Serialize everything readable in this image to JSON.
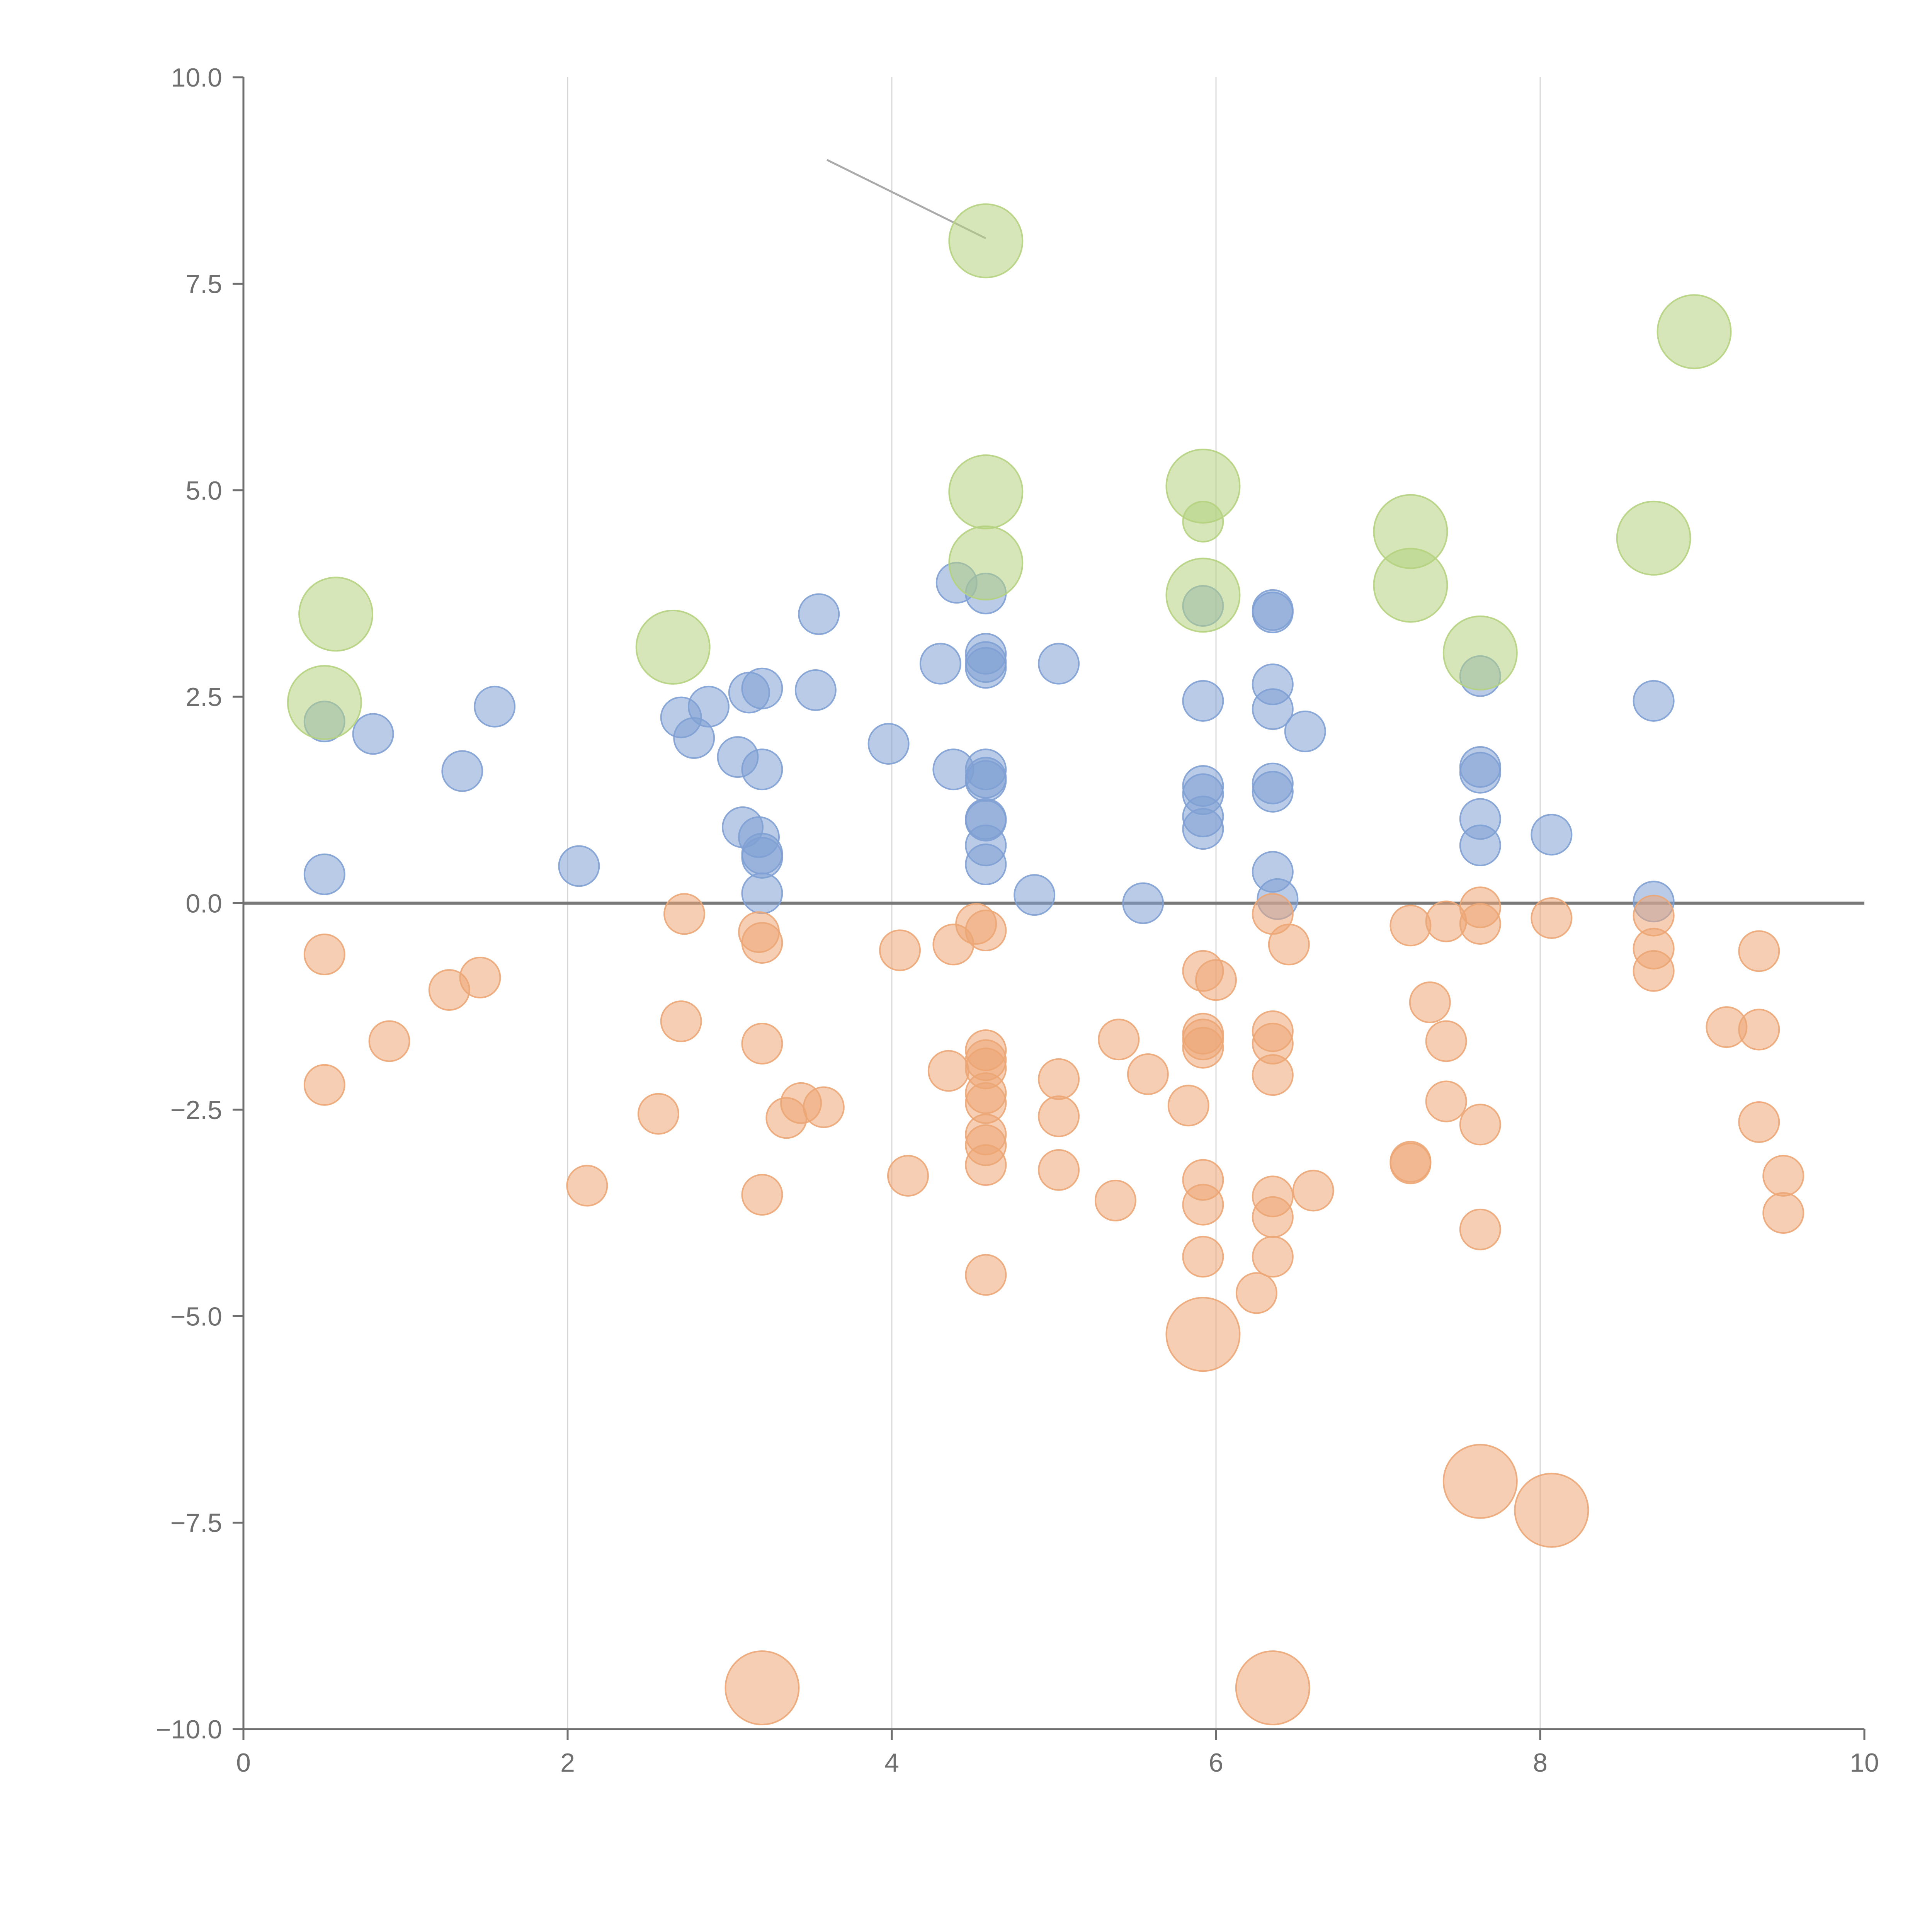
{
  "chart_data": {
    "type": "scatter",
    "title": "",
    "xlabel": "",
    "ylabel": "",
    "xlim": [
      0,
      10
    ],
    "ylim": [
      -10,
      10
    ],
    "grid": "vertical",
    "zero_line": 0,
    "x_ticks": [
      "0",
      "2",
      "4",
      "6",
      "8",
      "10"
    ],
    "y_ticks": [
      "10.0",
      "7.5",
      "5.0",
      "2.5",
      "0.0",
      "−2.5",
      "−5.0",
      "−7.5",
      "−10.0"
    ],
    "colors": {
      "blue": "#7fa0d4",
      "orange": "#eca675",
      "green": "#b5d17f",
      "axis": "#6f6f6f",
      "grid": "#d8d8d8",
      "zero": "#777777",
      "leader": "#aaaaaa"
    },
    "series": [
      {
        "name": "blue",
        "color": "#7fa0d4",
        "size": "small",
        "points": [
          [
            0.5,
            2.2
          ],
          [
            0.5,
            0.35
          ],
          [
            0.8,
            2.05
          ],
          [
            1.35,
            1.6
          ],
          [
            1.55,
            2.38
          ],
          [
            2.07,
            0.45
          ],
          [
            2.7,
            2.25
          ],
          [
            2.78,
            2.0
          ],
          [
            2.87,
            2.38
          ],
          [
            3.05,
            1.77
          ],
          [
            3.12,
            2.55
          ],
          [
            3.2,
            2.6
          ],
          [
            3.2,
            1.62
          ],
          [
            3.08,
            0.92
          ],
          [
            3.18,
            0.8
          ],
          [
            3.2,
            0.6
          ],
          [
            3.2,
            0.55
          ],
          [
            3.2,
            0.12
          ],
          [
            3.55,
            3.5
          ],
          [
            3.53,
            2.58
          ],
          [
            3.98,
            1.93
          ],
          [
            4.3,
            2.9
          ],
          [
            4.38,
            1.62
          ],
          [
            4.4,
            3.88
          ],
          [
            4.58,
            3.75
          ],
          [
            4.58,
            3.02
          ],
          [
            4.58,
            2.92
          ],
          [
            4.58,
            2.85
          ],
          [
            4.58,
            1.62
          ],
          [
            4.58,
            1.52
          ],
          [
            4.58,
            1.48
          ],
          [
            4.58,
            1.02
          ],
          [
            4.58,
            1.0
          ],
          [
            4.58,
            0.7
          ],
          [
            4.58,
            0.47
          ],
          [
            4.88,
            0.1
          ],
          [
            5.03,
            2.9
          ],
          [
            5.55,
            0.0
          ],
          [
            5.92,
            3.6
          ],
          [
            5.92,
            2.45
          ],
          [
            5.92,
            1.42
          ],
          [
            5.92,
            1.32
          ],
          [
            5.92,
            1.05
          ],
          [
            5.92,
            0.9
          ],
          [
            6.35,
            3.55
          ],
          [
            6.35,
            3.52
          ],
          [
            6.35,
            2.65
          ],
          [
            6.35,
            2.35
          ],
          [
            6.35,
            1.45
          ],
          [
            6.35,
            1.35
          ],
          [
            6.35,
            0.38
          ],
          [
            6.38,
            0.05
          ],
          [
            6.55,
            2.08
          ],
          [
            7.63,
            2.75
          ],
          [
            7.63,
            1.65
          ],
          [
            7.63,
            1.58
          ],
          [
            7.63,
            1.02
          ],
          [
            7.63,
            0.7
          ],
          [
            8.07,
            0.83
          ],
          [
            8.7,
            2.45
          ],
          [
            8.7,
            0.02
          ]
        ]
      },
      {
        "name": "orange",
        "color": "#eca675",
        "size": "small",
        "points": [
          [
            0.5,
            -0.62
          ],
          [
            0.5,
            -2.2
          ],
          [
            0.9,
            -1.67
          ],
          [
            1.27,
            -1.05
          ],
          [
            1.46,
            -0.9
          ],
          [
            2.12,
            -3.42
          ],
          [
            2.56,
            -2.55
          ],
          [
            2.72,
            -0.13
          ],
          [
            2.7,
            -1.43
          ],
          [
            3.18,
            -0.35
          ],
          [
            3.2,
            -0.48
          ],
          [
            3.2,
            -1.7
          ],
          [
            3.2,
            -3.53
          ],
          [
            3.35,
            -2.6
          ],
          [
            3.44,
            -2.42
          ],
          [
            3.58,
            -2.47
          ],
          [
            4.05,
            -0.57
          ],
          [
            4.1,
            -3.3
          ],
          [
            4.35,
            -2.03
          ],
          [
            4.38,
            -0.5
          ],
          [
            4.52,
            -0.25
          ],
          [
            4.58,
            -0.33
          ],
          [
            4.58,
            -1.78
          ],
          [
            4.58,
            -1.9
          ],
          [
            4.58,
            -2.0
          ],
          [
            4.58,
            -2.3
          ],
          [
            4.58,
            -2.42
          ],
          [
            4.58,
            -2.8
          ],
          [
            4.58,
            -2.93
          ],
          [
            4.58,
            -3.17
          ],
          [
            4.58,
            -4.5
          ],
          [
            5.03,
            -2.13
          ],
          [
            5.03,
            -2.58
          ],
          [
            5.03,
            -3.23
          ],
          [
            5.4,
            -1.65
          ],
          [
            5.38,
            -3.6
          ],
          [
            5.58,
            -2.07
          ],
          [
            5.83,
            -2.45
          ],
          [
            5.92,
            -0.82
          ],
          [
            6.0,
            -0.93
          ],
          [
            5.92,
            -1.58
          ],
          [
            5.92,
            -1.65
          ],
          [
            5.92,
            -1.75
          ],
          [
            5.92,
            -3.35
          ],
          [
            5.92,
            -3.65
          ],
          [
            5.92,
            -4.28
          ],
          [
            6.25,
            -4.72
          ],
          [
            6.35,
            -0.13
          ],
          [
            6.45,
            -0.5
          ],
          [
            6.35,
            -1.55
          ],
          [
            6.35,
            -1.7
          ],
          [
            6.35,
            -2.08
          ],
          [
            6.35,
            -3.55
          ],
          [
            6.35,
            -3.8
          ],
          [
            6.35,
            -4.28
          ],
          [
            6.6,
            -3.48
          ],
          [
            7.2,
            -0.27
          ],
          [
            7.2,
            -3.13
          ],
          [
            7.2,
            -3.15
          ],
          [
            7.32,
            -1.2
          ],
          [
            7.42,
            -0.22
          ],
          [
            7.42,
            -1.67
          ],
          [
            7.42,
            -2.4
          ],
          [
            7.63,
            -0.05
          ],
          [
            7.63,
            -0.25
          ],
          [
            7.63,
            -2.68
          ],
          [
            7.63,
            -3.95
          ],
          [
            8.07,
            -0.18
          ],
          [
            8.7,
            -0.15
          ],
          [
            8.7,
            -0.55
          ],
          [
            8.7,
            -0.82
          ],
          [
            9.15,
            -1.5
          ],
          [
            9.35,
            -0.58
          ],
          [
            9.35,
            -1.53
          ],
          [
            9.35,
            -2.65
          ],
          [
            9.5,
            -3.3
          ],
          [
            9.5,
            -3.75
          ]
        ]
      },
      {
        "name": "orange-large",
        "color": "#eca675",
        "size": "large",
        "points": [
          [
            5.92,
            -5.22
          ],
          [
            7.63,
            -7.0
          ],
          [
            8.07,
            -7.35
          ],
          [
            3.2,
            -9.5
          ],
          [
            6.35,
            -9.5
          ]
        ]
      },
      {
        "name": "green",
        "color": "#b5d17f",
        "size": "large",
        "points": [
          [
            0.57,
            3.5
          ],
          [
            0.5,
            2.43
          ],
          [
            2.65,
            3.1
          ],
          [
            4.58,
            8.02
          ],
          [
            4.58,
            4.98
          ],
          [
            4.58,
            4.12
          ],
          [
            5.92,
            5.05
          ],
          [
            5.92,
            3.73
          ],
          [
            7.2,
            4.5
          ],
          [
            7.2,
            3.85
          ],
          [
            7.63,
            3.03
          ],
          [
            8.7,
            4.42
          ],
          [
            8.95,
            6.92
          ]
        ]
      },
      {
        "name": "green-small",
        "color": "#b5d17f",
        "size": "small",
        "points": [
          [
            5.92,
            4.62
          ]
        ]
      }
    ],
    "annotations": [
      {
        "from": [
          3.6,
          9.0
        ],
        "to": [
          4.58,
          8.05
        ]
      }
    ]
  }
}
